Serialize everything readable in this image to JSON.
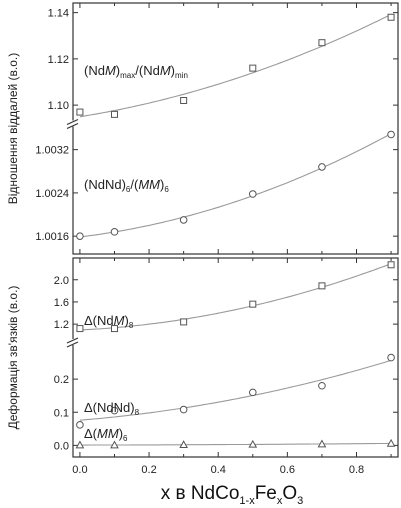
{
  "chart_data": [
    {
      "type": "scatter",
      "ylabel": "Відношення віддалей (в.о.)",
      "axis_break": true,
      "segments": [
        {
          "ylim": [
            1.094,
            1.142
          ],
          "yticks": [
            "1.10",
            "1.12",
            "1.14"
          ],
          "series": [
            {
              "name": "(NdM)max/(NdM)min",
              "label_parts": [
                "(Nd",
                "M",
                ")",
                "max",
                "/(Nd",
                "M",
                ")",
                "min"
              ],
              "marker": "square",
              "x": [
                0.0,
                0.1,
                0.3,
                0.5,
                0.7,
                0.9
              ],
              "y": [
                1.097,
                1.096,
                1.102,
                1.116,
                1.127,
                1.138
              ]
            }
          ]
        },
        {
          "ylim": [
            1.0014,
            1.0036
          ],
          "yticks": [
            "1.0016",
            "1.0024",
            "1.0032"
          ],
          "series": [
            {
              "name": "(NdNd)6/(MM)6",
              "label_parts": [
                "(NdNd)",
                "6",
                "/(",
                "MM",
                ")",
                "6"
              ],
              "marker": "circle",
              "x": [
                0.0,
                0.1,
                0.3,
                0.5,
                0.7,
                0.9
              ],
              "y": [
                1.0016,
                1.00168,
                1.0019,
                1.00238,
                1.00288,
                1.00348
              ]
            }
          ]
        }
      ]
    },
    {
      "type": "scatter",
      "ylabel": "Деформація зв'язків (в.о.)",
      "axis_break": true,
      "xlim": [
        -0.02,
        0.92
      ],
      "xticks": [
        "0.0",
        "0.2",
        "0.4",
        "0.6",
        "0.8"
      ],
      "xlabel_parts": [
        "x в NdCo",
        "1-x",
        "Fe",
        "x",
        "O",
        "3"
      ],
      "segments": [
        {
          "ylim": [
            0.95,
            2.32
          ],
          "yticks": [
            "1.2",
            "1.6",
            "2.0"
          ],
          "series": [
            {
              "name": "Δ(NdM)8",
              "label_parts": [
                "Δ(Nd",
                "M",
                ")",
                "8"
              ],
              "marker": "square",
              "x": [
                0.0,
                0.1,
                0.3,
                0.5,
                0.7,
                0.9
              ],
              "y": [
                1.12,
                1.12,
                1.24,
                1.56,
                1.89,
                2.27
              ]
            }
          ]
        },
        {
          "ylim": [
            -0.02,
            0.3
          ],
          "yticks": [
            "0.0",
            "0.1",
            "0.2"
          ],
          "series": [
            {
              "name": "Δ(NdNd)8",
              "label_parts": [
                "Δ(NdNd)",
                "8"
              ],
              "marker": "circle",
              "x": [
                0.0,
                0.1,
                0.3,
                0.5,
                0.7,
                0.9
              ],
              "y": [
                0.062,
                0.105,
                0.108,
                0.16,
                0.18,
                0.265
              ]
            },
            {
              "name": "Δ(MM)6",
              "label_parts": [
                "Δ(",
                "MM",
                ")",
                "6"
              ],
              "marker": "triangle",
              "x": [
                0.0,
                0.1,
                0.3,
                0.5,
                0.7,
                0.9
              ],
              "y": [
                0.001,
                0.001,
                0.002,
                0.003,
                0.004,
                0.006
              ]
            }
          ]
        }
      ]
    }
  ]
}
